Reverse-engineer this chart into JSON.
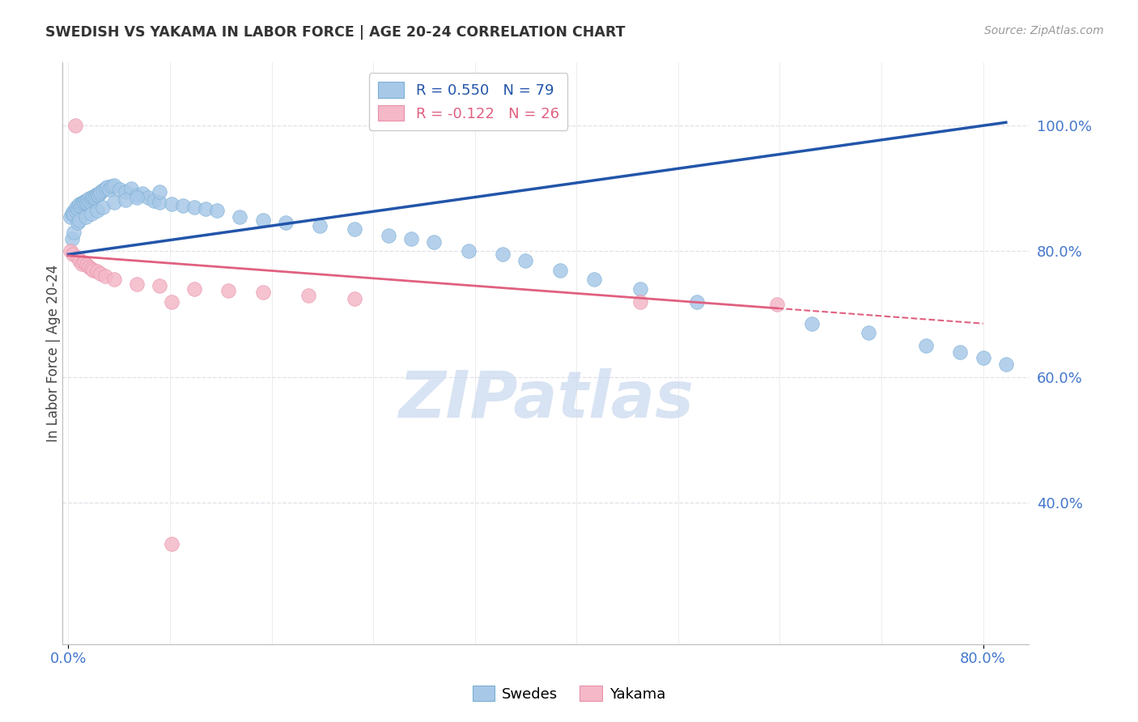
{
  "title": "SWEDISH VS YAKAMA IN LABOR FORCE | AGE 20-24 CORRELATION CHART",
  "source": "Source: ZipAtlas.com",
  "ylabel": "In Labor Force | Age 20-24",
  "xlim": [
    -0.005,
    0.84
  ],
  "ylim": [
    0.175,
    1.1
  ],
  "xticks": [
    0.0,
    0.8
  ],
  "xticklabels": [
    "0.0%",
    "80.0%"
  ],
  "yticks_right": [
    0.4,
    0.6,
    0.8,
    1.0
  ],
  "ytick_labels_right": [
    "40.0%",
    "60.0%",
    "80.0%",
    "100.0%"
  ],
  "swedes_R": 0.55,
  "swedes_N": 79,
  "yakama_R": -0.122,
  "yakama_N": 26,
  "swedes_color": "#a8c8e8",
  "swedes_edge": "#7aafd4",
  "yakama_color": "#f4b8c8",
  "yakama_edge": "#e890a8",
  "trend_swedes_color": "#2255aa",
  "trend_yakama_color": "#e06080",
  "watermark": "ZIPatlas",
  "grid_color": "#e0e0e8",
  "tick_color": "#4477cc",
  "title_color": "#333333",
  "source_color": "#999999",
  "trend_s_x0": 0.0,
  "trend_s_y0": 0.795,
  "trend_s_x1": 0.82,
  "trend_s_y1": 1.005,
  "trend_y_x0": 0.0,
  "trend_y_y0": 0.793,
  "trend_y_x1": 0.8,
  "trend_y_y1": 0.685,
  "trend_y_dash_x0": 0.62,
  "trend_y_dash_x1": 0.8,
  "swedes_x": [
    0.002,
    0.003,
    0.004,
    0.005,
    0.006,
    0.007,
    0.008,
    0.009,
    0.01,
    0.011,
    0.012,
    0.013,
    0.014,
    0.015,
    0.016,
    0.017,
    0.018,
    0.019,
    0.02,
    0.021,
    0.022,
    0.023,
    0.024,
    0.025,
    0.026,
    0.027,
    0.028,
    0.03,
    0.032,
    0.034,
    0.036,
    0.038,
    0.04,
    0.045,
    0.05,
    0.055,
    0.06,
    0.065,
    0.07,
    0.075,
    0.08,
    0.09,
    0.1,
    0.11,
    0.12,
    0.13,
    0.15,
    0.17,
    0.19,
    0.22,
    0.25,
    0.28,
    0.3,
    0.32,
    0.35,
    0.38,
    0.4,
    0.43,
    0.46,
    0.5,
    0.55,
    0.65,
    0.7,
    0.75,
    0.78,
    0.8,
    0.82,
    0.003,
    0.005,
    0.008,
    0.01,
    0.015,
    0.02,
    0.025,
    0.03,
    0.04,
    0.05,
    0.06,
    0.08
  ],
  "swedes_y": [
    0.855,
    0.86,
    0.862,
    0.858,
    0.865,
    0.87,
    0.868,
    0.872,
    0.875,
    0.873,
    0.876,
    0.878,
    0.879,
    0.88,
    0.878,
    0.882,
    0.884,
    0.879,
    0.883,
    0.885,
    0.887,
    0.886,
    0.89,
    0.891,
    0.889,
    0.892,
    0.895,
    0.897,
    0.9,
    0.902,
    0.899,
    0.903,
    0.905,
    0.898,
    0.895,
    0.9,
    0.89,
    0.892,
    0.885,
    0.88,
    0.878,
    0.875,
    0.872,
    0.87,
    0.868,
    0.865,
    0.855,
    0.85,
    0.845,
    0.84,
    0.835,
    0.825,
    0.82,
    0.815,
    0.8,
    0.795,
    0.785,
    0.77,
    0.755,
    0.74,
    0.72,
    0.685,
    0.67,
    0.65,
    0.64,
    0.63,
    0.62,
    0.82,
    0.83,
    0.845,
    0.85,
    0.855,
    0.86,
    0.865,
    0.87,
    0.878,
    0.882,
    0.886,
    0.895
  ],
  "yakama_x": [
    0.002,
    0.004,
    0.006,
    0.008,
    0.01,
    0.012,
    0.014,
    0.016,
    0.018,
    0.02,
    0.022,
    0.025,
    0.028,
    0.032,
    0.04,
    0.06,
    0.08,
    0.11,
    0.14,
    0.17,
    0.21,
    0.25,
    0.09,
    0.5,
    0.62,
    0.09
  ],
  "yakama_y": [
    0.8,
    0.795,
    1.0,
    0.79,
    0.785,
    0.78,
    0.782,
    0.778,
    0.775,
    0.772,
    0.77,
    0.768,
    0.765,
    0.76,
    0.755,
    0.748,
    0.745,
    0.74,
    0.738,
    0.735,
    0.73,
    0.725,
    0.72,
    0.72,
    0.715,
    0.335
  ]
}
